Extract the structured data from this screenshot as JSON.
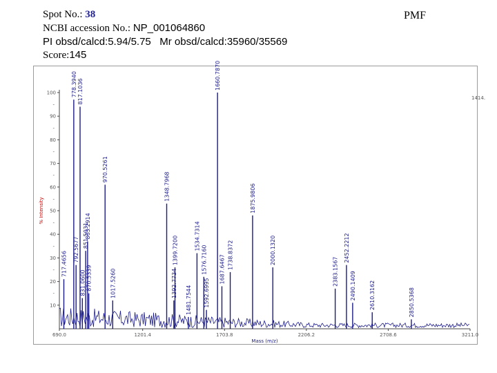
{
  "header": {
    "spot_label": "Spot No.:",
    "spot_number": "38",
    "accession_label": "NCBI accession No.:",
    "accession_value": "NP_001064860",
    "pi_line": "PI obsd/calcd:5.94/5.75   Mr obsd/calcd:35960/35569",
    "score_label": "Score:",
    "score_value": "145",
    "method": "PMF"
  },
  "colors": {
    "spectrum": "#1a1a8a",
    "peak_label": "#1a1a8a",
    "axis_label_y": "#cc0000",
    "axis_label_x": "#1a1a8a"
  },
  "chart_data": {
    "type": "line",
    "xlabel": "Mass (m/z)",
    "ylabel": "% Intensity",
    "xlim": [
      690.0,
      3211.0
    ],
    "ylim": [
      0,
      100
    ],
    "x_ticks": [
      "690.0",
      "1201.4",
      "1703.8",
      "2206.2",
      "2708.6",
      "3211.0"
    ],
    "x_tick_values": [
      690.0,
      1201.4,
      1703.8,
      2206.2,
      2708.6,
      3211.0
    ],
    "y_ticks": [
      "10",
      "20",
      "30",
      "40",
      "50",
      "60",
      "70",
      "80",
      "90",
      "100"
    ],
    "y_tick_values": [
      10,
      20,
      30,
      40,
      50,
      60,
      70,
      80,
      90,
      100
    ],
    "max_intensity_label": "1414.",
    "peaks": [
      {
        "mz": 717.4656,
        "label": "717.4656",
        "intensity": 21
      },
      {
        "mz": 778.394,
        "label": "778.3940",
        "intensity": 97
      },
      {
        "mz": 792.5677,
        "label": "792.5677",
        "intensity": 27
      },
      {
        "mz": 817.1036,
        "label": "817.1036",
        "intensity": 94
      },
      {
        "mz": 831.06,
        "label": "831.0600",
        "intensity": 13
      },
      {
        "mz": 851.5031,
        "label": "851.5031",
        "intensity": 33
      },
      {
        "mz": 863.2914,
        "label": "863.2914",
        "intensity": 37
      },
      {
        "mz": 870.5339,
        "label": "870.5339",
        "intensity": 15
      },
      {
        "mz": 970.5261,
        "label": "970.5261",
        "intensity": 61
      },
      {
        "mz": 1017.526,
        "label": "1017.5260",
        "intensity": 12
      },
      {
        "mz": 1348.7968,
        "label": "1348.7968",
        "intensity": 53
      },
      {
        "mz": 1392.7734,
        "label": "1392.7734",
        "intensity": 12
      },
      {
        "mz": 1399.72,
        "label": "1399.7200",
        "intensity": 26
      },
      {
        "mz": 1481.7544,
        "label": "1481.7544",
        "intensity": 5
      },
      {
        "mz": 1534.7314,
        "label": "1534.7314",
        "intensity": 32
      },
      {
        "mz": 1576.716,
        "label": "1576.7160",
        "intensity": 22
      },
      {
        "mz": 1592.6995,
        "label": "1592.6995",
        "intensity": 8
      },
      {
        "mz": 1660.787,
        "label": "1660.7870",
        "intensity": 100
      },
      {
        "mz": 1687.6467,
        "label": "1687.6467",
        "intensity": 18
      },
      {
        "mz": 1738.8372,
        "label": "1738.8372",
        "intensity": 24
      },
      {
        "mz": 1875.9806,
        "label": "1875.9806",
        "intensity": 48
      },
      {
        "mz": 2000.132,
        "label": "2000.1320",
        "intensity": 26
      },
      {
        "mz": 2383.1567,
        "label": "2383.1567",
        "intensity": 17
      },
      {
        "mz": 2452.2212,
        "label": "2452.2212",
        "intensity": 27
      },
      {
        "mz": 2490.1409,
        "label": "2490.1409",
        "intensity": 11
      },
      {
        "mz": 2610.3162,
        "label": "2610.3162",
        "intensity": 7
      },
      {
        "mz": 2850.5368,
        "label": "2850.5368",
        "intensity": 4
      }
    ]
  }
}
